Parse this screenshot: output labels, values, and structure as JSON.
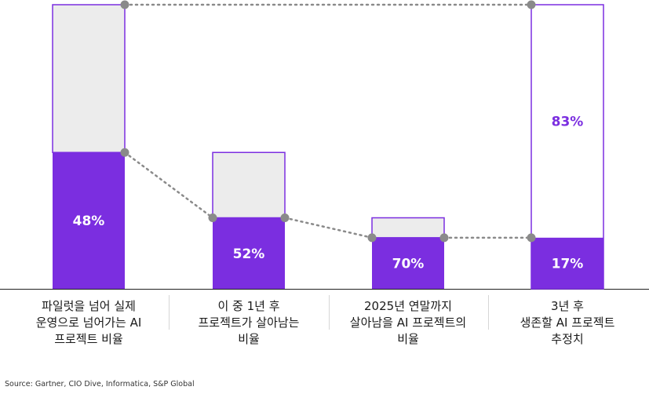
{
  "chart_data": {
    "type": "bar",
    "categories": [
      "파일럿을 넘어 실제\n운영으로 넘어가는 AI\n프로젝트 비율",
      "이 중 1년 후\n프로젝트가 살아남는\n비율",
      "2025년 연말까지\n살아남을 AI 프로젝트의\n비율",
      "3년 후\n생존할 AI 프로젝트\n추정치"
    ],
    "bars": [
      {
        "total": 100,
        "filled": 48,
        "label": "48%",
        "label_on": "filled"
      },
      {
        "total": 48,
        "filled": 25,
        "label": "52%",
        "label_on": "filled"
      },
      {
        "total": 25,
        "filled": 18,
        "label": "70%",
        "label_on": "filled"
      },
      {
        "total": 100,
        "filled": 18,
        "label": "17%",
        "label_on": "filled",
        "top_label": "83%",
        "outline_only": true
      }
    ],
    "ylim": [
      0,
      100
    ],
    "colors": {
      "filled": "#7b2ee0",
      "remainder": "#ececec",
      "outline": "#7b2ee0",
      "connector": "#8a8a8a",
      "label_on_fill": "#ffffff",
      "label_on_empty": "#7b2ee0"
    }
  },
  "source": "Source: Gartner, CIO Dive, Informatica, S&P Global"
}
